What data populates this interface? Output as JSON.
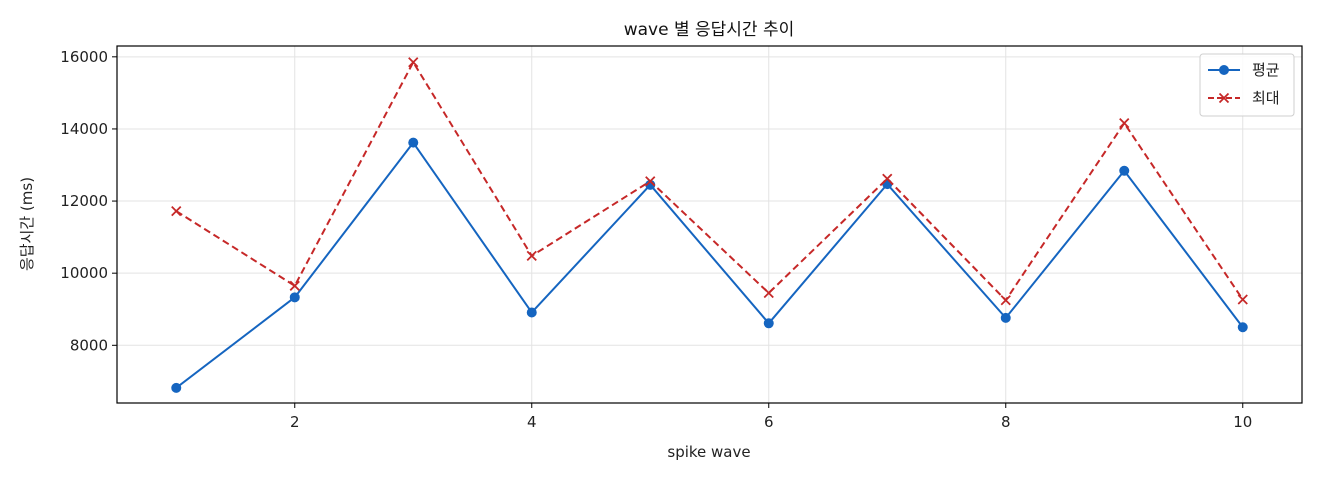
{
  "chart_data": {
    "type": "line",
    "title": "wave 별 응답시간 추이",
    "xlabel": "spike wave",
    "ylabel": "응답시간 (ms)",
    "x": [
      1,
      2,
      3,
      4,
      5,
      6,
      7,
      8,
      9,
      10
    ],
    "xlim": [
      0.5,
      10.5
    ],
    "ylim": [
      6400,
      16300
    ],
    "xticks": [
      2,
      4,
      6,
      8,
      10
    ],
    "yticks": [
      8000,
      10000,
      12000,
      14000,
      16000
    ],
    "grid": true,
    "legend_position": "top-right",
    "series": [
      {
        "name": "평균",
        "values": [
          6820,
          9330,
          13620,
          8910,
          12450,
          8610,
          12470,
          8760,
          12840,
          8500
        ],
        "color": "#1565c0",
        "line_style": "solid",
        "marker": "circle"
      },
      {
        "name": "최대",
        "values": [
          11720,
          9650,
          15850,
          10480,
          12550,
          9450,
          12620,
          9250,
          14160,
          9270
        ],
        "color": "#c62828",
        "line_style": "dashed",
        "marker": "x"
      }
    ]
  }
}
